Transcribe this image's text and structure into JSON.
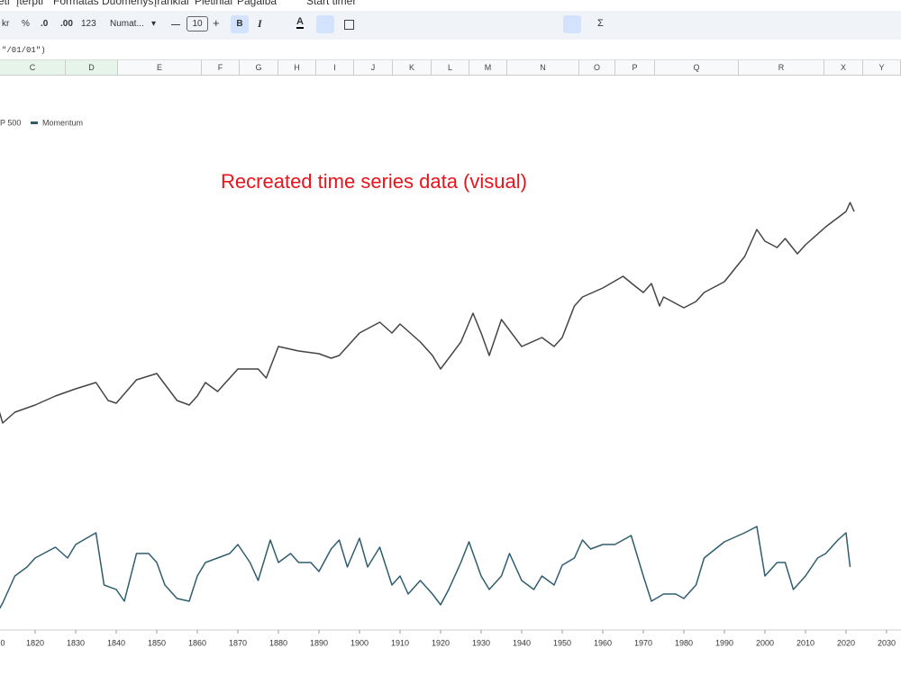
{
  "menu": [
    "eti",
    "Įterpti",
    "Formatas",
    "Duomenys",
    "Įrankiai",
    "Plėtiniai",
    "Pagalba",
    "Start timer"
  ],
  "toolbar": [
    "kr",
    "%",
    ".0",
    ".00",
    "123",
    "Numat...",
    "10",
    "B",
    "I",
    "A",
    "Σ"
  ],
  "formula": "\"/01/01\")",
  "columns": [
    "C",
    "D",
    "E",
    "F",
    "G",
    "H",
    "I",
    "J",
    "K",
    "L",
    "M",
    "N",
    "O",
    "P",
    "Q",
    "R",
    "X",
    "Y"
  ],
  "chart_data": {
    "type": "line",
    "annotation": "Recreated time series data (visual)",
    "xlim": [
      1811.33,
      2033.56
    ],
    "xticks": [
      {
        "value": 1810,
        "label": "0"
      },
      1820,
      1830,
      1840,
      1850,
      1860,
      1870,
      1880,
      1890,
      1900,
      1910,
      1920,
      1930,
      1940,
      1950,
      1960,
      1970,
      1980,
      1990,
      2000,
      2010,
      2020,
      2030
    ],
    "ylim": [
      0,
      600
    ],
    "series": [
      {
        "name": "P 500",
        "color": "#444444",
        "x": [
          1811,
          1812,
          1815,
          1820,
          1825,
          1830,
          1835,
          1838,
          1840,
          1845,
          1850,
          1855,
          1858,
          1860,
          1862,
          1865,
          1870,
          1875,
          1877,
          1880,
          1885,
          1890,
          1893,
          1895,
          1900,
          1905,
          1908,
          1910,
          1915,
          1918,
          1920,
          1925,
          1928,
          1930,
          1932,
          1935,
          1940,
          1945,
          1948,
          1950,
          1953,
          1955,
          1960,
          1965,
          1968,
          1970,
          1972,
          1974,
          1975,
          1980,
          1983,
          1985,
          1990,
          1995,
          1998,
          2000,
          2003,
          2005,
          2008,
          2010,
          2015,
          2020,
          2021,
          2022
        ],
        "values": [
          245,
          230,
          242,
          250,
          260,
          268,
          275,
          255,
          252,
          278,
          285,
          255,
          250,
          260,
          275,
          265,
          290,
          290,
          280,
          315,
          310,
          307,
          302,
          305,
          330,
          342,
          330,
          340,
          320,
          305,
          290,
          320,
          352,
          330,
          305,
          345,
          315,
          325,
          315,
          325,
          360,
          370,
          380,
          393,
          382,
          375,
          385,
          360,
          370,
          358,
          365,
          375,
          387,
          415,
          445,
          432,
          425,
          435,
          418,
          428,
          448,
          465,
          475,
          465
        ]
      },
      {
        "name": "Momentum",
        "color": "#2f5d6e",
        "x": [
          1811,
          1812,
          1815,
          1818,
          1820,
          1825,
          1828,
          1830,
          1835,
          1837,
          1840,
          1842,
          1845,
          1848,
          1850,
          1852,
          1855,
          1858,
          1860,
          1862,
          1865,
          1868,
          1870,
          1873,
          1875,
          1878,
          1880,
          1883,
          1885,
          1888,
          1890,
          1893,
          1895,
          1897,
          1900,
          1902,
          1905,
          1908,
          1910,
          1912,
          1915,
          1918,
          1920,
          1922,
          1925,
          1927,
          1930,
          1932,
          1935,
          1937,
          1940,
          1943,
          1945,
          1948,
          1950,
          1953,
          1955,
          1957,
          1960,
          1963,
          1965,
          1967,
          1970,
          1972,
          1975,
          1978,
          1980,
          1983,
          1985,
          1990,
          1995,
          1998,
          2000,
          2003,
          2005,
          2007,
          2010,
          2013,
          2015,
          2018,
          2020,
          2021
        ],
        "values": [
          22,
          30,
          60,
          70,
          80,
          92,
          80,
          95,
          108,
          50,
          45,
          32,
          85,
          85,
          75,
          50,
          35,
          32,
          60,
          75,
          80,
          85,
          95,
          75,
          55,
          100,
          75,
          85,
          75,
          75,
          65,
          90,
          100,
          70,
          102,
          70,
          92,
          50,
          60,
          40,
          55,
          40,
          28,
          45,
          75,
          98,
          60,
          45,
          60,
          85,
          55,
          45,
          60,
          50,
          72,
          80,
          100,
          90,
          95,
          95,
          100,
          105,
          60,
          32,
          40,
          40,
          35,
          50,
          80,
          98,
          108,
          115,
          60,
          75,
          75,
          45,
          60,
          80,
          85,
          100,
          108,
          70
        ]
      }
    ]
  }
}
